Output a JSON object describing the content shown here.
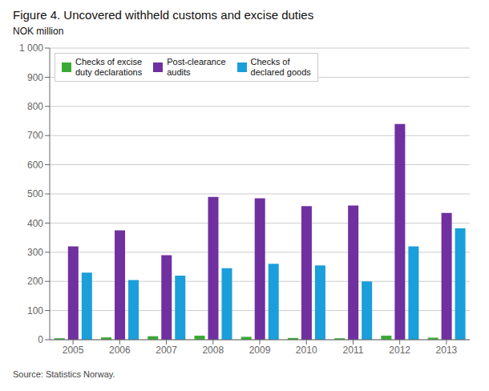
{
  "chart_data": {
    "type": "bar",
    "title": "Figure 4. Uncovered withheld customs and excise duties",
    "ylabel": "NOK million",
    "source": "Source: Statistics Norway.",
    "categories": [
      "2005",
      "2006",
      "2007",
      "2008",
      "2009",
      "2010",
      "2011",
      "2012",
      "2013"
    ],
    "series": [
      {
        "name": "Checks of excise\nduty declarations",
        "color": "#3aaa35",
        "values": [
          5,
          8,
          12,
          14,
          10,
          6,
          5,
          14,
          7
        ]
      },
      {
        "name": "Post-clearance\naudits",
        "color": "#7030a0",
        "values": [
          320,
          375,
          290,
          490,
          485,
          458,
          460,
          740,
          435
        ]
      },
      {
        "name": "Checks of\ndeclared goods",
        "color": "#1a9fda",
        "values": [
          230,
          205,
          220,
          245,
          260,
          255,
          200,
          320,
          382
        ]
      }
    ],
    "ylim": [
      0,
      1000
    ],
    "yticks": [
      0,
      100,
      200,
      300,
      400,
      500,
      600,
      700,
      800,
      900,
      {
        "value": 1000,
        "label": "1 000"
      }
    ],
    "grid": true,
    "legend": "upper left"
  }
}
